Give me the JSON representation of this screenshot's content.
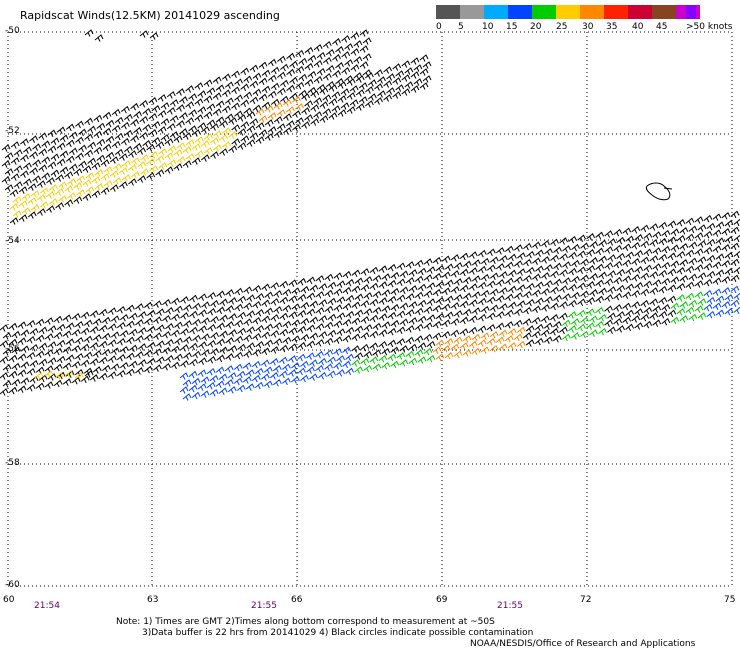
{
  "title": "Rapidscat Winds(12.5KM) 20141029 ascending",
  "legend": {
    "unit": "knots",
    "labels": [
      "0",
      "5",
      "10",
      "15",
      "20",
      "25",
      "30",
      "35",
      "40",
      "45",
      ">50 knots"
    ],
    "colors": [
      "#555555",
      "#999999",
      "#00aaff",
      "#0044ff",
      "#00cc00",
      "#ffcc00",
      "#ff8800",
      "#ff2200",
      "#cc0033",
      "#884422",
      "#cc00cc",
      "#8800ff",
      "#440099"
    ]
  },
  "axes": {
    "lat_labels": [
      "-50",
      "-52",
      "-54",
      "-56",
      "-58",
      "-60"
    ],
    "lon_labels": [
      "60",
      "63",
      "66",
      "69",
      "72",
      "75"
    ]
  },
  "pass_times": [
    "21:54",
    "21:55",
    "21:55"
  ],
  "notes": [
    "Note: 1) Times are GMT 2)Times along bottom correspond to measurement at ~50S",
    "3)Data buffer is 22 hrs from 20141029 4) Black circles indicate possible contamination",
    "NOAA/NESDIS/Office of Research and Applications"
  ],
  "colors": {
    "calm": "#000000",
    "light": "#00cc00",
    "moderate": "#0044ff",
    "strong": "#ffcc00",
    "stronger": "#ff8800"
  }
}
